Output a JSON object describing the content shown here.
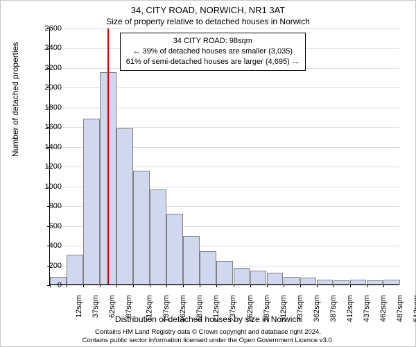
{
  "title": "34, CITY ROAD, NORWICH, NR1 3AT",
  "subtitle": "Size of property relative to detached houses in Norwich",
  "ylabel": "Number of detached properties",
  "xlabel": "Distribution of detached houses by size in Norwich",
  "footer_line1": "Contains HM Land Registry data © Crown copyright and database right 2024.",
  "footer_line2": "Contains public sector information licensed under the Open Government Licence v3.0.",
  "chart": {
    "type": "histogram",
    "background_color": "#ffffff",
    "grid_color": "#dcdcdc",
    "axis_color": "#000000",
    "bar_fill": "#cfd8ef",
    "bar_border": "#808080",
    "marker_color": "#cc0000",
    "marker_x_value": 98,
    "ylim": [
      0,
      2600
    ],
    "ytick_step": 200,
    "x_start": 12,
    "x_step": 25,
    "x_count": 21,
    "x_unit_suffix": "sqm",
    "bars": [
      80,
      300,
      1680,
      2150,
      1580,
      1150,
      960,
      720,
      490,
      340,
      240,
      170,
      140,
      120,
      80,
      70,
      50,
      45,
      50,
      45,
      50
    ],
    "title_fontsize": 13,
    "label_fontsize": 12,
    "tick_fontsize": 11,
    "bar_gap_ratio": 0.02
  },
  "info_box": {
    "header": "34 CITY ROAD: 98sqm",
    "line1": "← 39% of detached houses are smaller (3,035)",
    "line2": "61% of semi-detached houses are larger (4,695) →"
  }
}
